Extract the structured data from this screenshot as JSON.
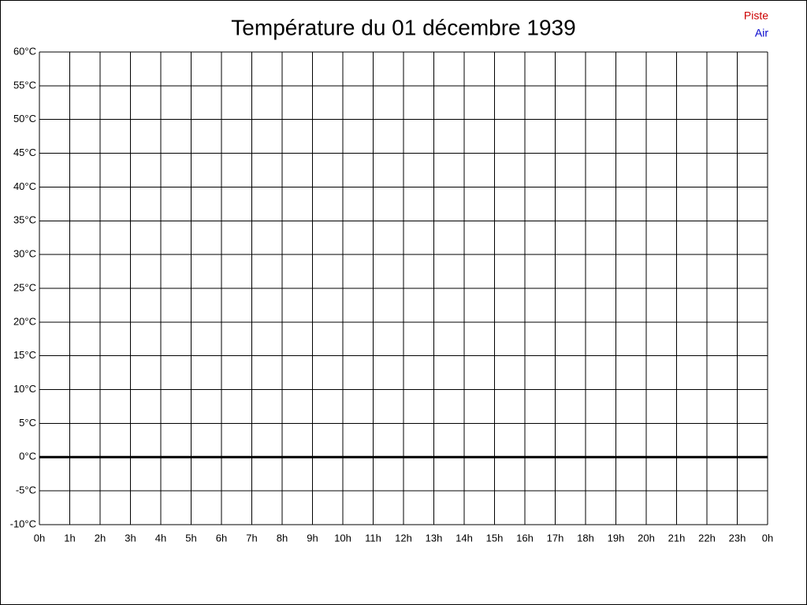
{
  "chart_data": {
    "type": "line",
    "title": "Température du 01 décembre 1939",
    "categories": [
      "0h",
      "1h",
      "2h",
      "3h",
      "4h",
      "5h",
      "6h",
      "7h",
      "8h",
      "9h",
      "10h",
      "11h",
      "12h",
      "13h",
      "14h",
      "15h",
      "16h",
      "17h",
      "18h",
      "19h",
      "20h",
      "21h",
      "22h",
      "23h",
      "0h"
    ],
    "series": [
      {
        "name": "Piste",
        "color": "#cc0000",
        "values": [
          null,
          null,
          null,
          null,
          null,
          null,
          null,
          null,
          null,
          null,
          null,
          null,
          null,
          null,
          null,
          null,
          null,
          null,
          null,
          null,
          null,
          null,
          null,
          null,
          null
        ]
      },
      {
        "name": "Air",
        "color": "#0000cc",
        "values": [
          null,
          null,
          null,
          null,
          null,
          null,
          null,
          null,
          null,
          null,
          null,
          null,
          null,
          null,
          null,
          null,
          null,
          null,
          null,
          null,
          null,
          null,
          null,
          null,
          null
        ]
      }
    ],
    "ylim": [
      -10,
      60
    ],
    "yticks": [
      {
        "value": -10,
        "label": "-10°C"
      },
      {
        "value": -5,
        "label": "-5°C"
      },
      {
        "value": 0,
        "label": "0°C"
      },
      {
        "value": 5,
        "label": "5°C"
      },
      {
        "value": 10,
        "label": "10°C"
      },
      {
        "value": 15,
        "label": "15°C"
      },
      {
        "value": 20,
        "label": "20°C"
      },
      {
        "value": 25,
        "label": "25°C"
      },
      {
        "value": 30,
        "label": "30°C"
      },
      {
        "value": 35,
        "label": "35°C"
      },
      {
        "value": 40,
        "label": "40°C"
      },
      {
        "value": 45,
        "label": "45°C"
      },
      {
        "value": 50,
        "label": "50°C"
      },
      {
        "value": 55,
        "label": "55°C"
      },
      {
        "value": 60,
        "label": "60°C"
      }
    ],
    "grid": true,
    "legend": "top-right"
  }
}
